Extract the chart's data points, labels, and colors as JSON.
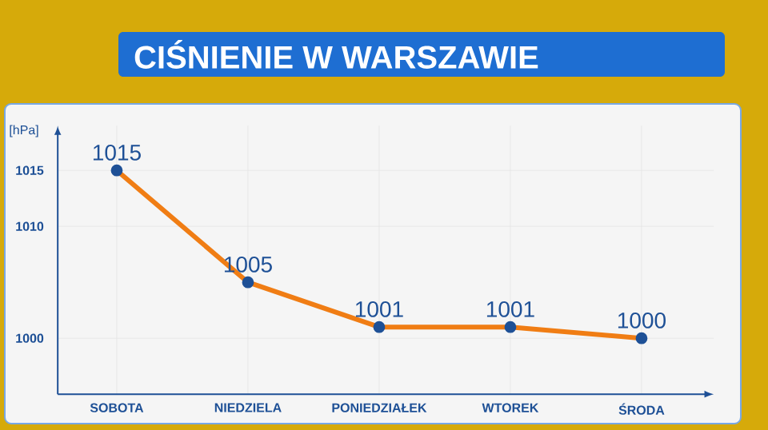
{
  "chart_data": {
    "type": "line",
    "title": "CIŚNIENIE W WARSZAWIE",
    "ylabel": "[hPa]",
    "categories": [
      "SOBOTA",
      "NIEDZIELA",
      "PONIEDZIAŁEK",
      "WTOREK",
      "ŚRODA"
    ],
    "series": [
      {
        "color": "#f07d14",
        "values": [
          1015,
          1005,
          1001,
          1001,
          1000
        ]
      }
    ],
    "ylim": [
      995,
      1019
    ],
    "yticks": [
      1000,
      1010,
      1015
    ],
    "data_labels": true,
    "marker": "circle",
    "line_style": "solid",
    "grid": true
  }
}
